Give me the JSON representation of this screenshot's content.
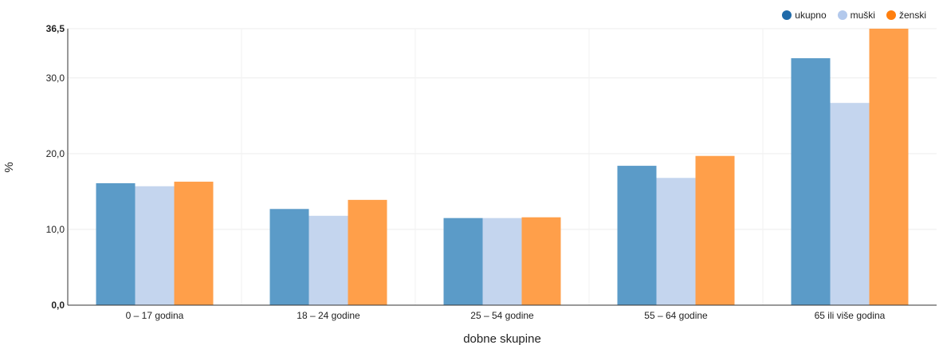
{
  "chart_data": {
    "type": "bar",
    "categories": [
      "0 – 17 godina",
      "18 – 24 godine",
      "25 – 54 godine",
      "55 – 64 godine",
      "65 ili više godina"
    ],
    "series": [
      {
        "name": "ukupno",
        "color": "#5b9bc8",
        "values": [
          16.1,
          12.7,
          11.5,
          18.4,
          32.6
        ]
      },
      {
        "name": "muški",
        "color": "#c4d5ee",
        "values": [
          15.7,
          11.8,
          11.5,
          16.8,
          26.7
        ]
      },
      {
        "name": "ženski",
        "color": "#ff9f4a",
        "values": [
          16.3,
          13.9,
          11.6,
          19.7,
          36.5
        ]
      }
    ],
    "legend_colors": [
      "#1f6aa9",
      "#b3c9ec",
      "#ff7f0e"
    ],
    "xlabel": "dobne skupine",
    "ylabel": "%",
    "ylim": [
      0,
      36.5
    ],
    "yticks": [
      {
        "value": 0,
        "label": "0,0",
        "bold": true
      },
      {
        "value": 10,
        "label": "10,0",
        "bold": false
      },
      {
        "value": 20,
        "label": "20,0",
        "bold": false
      },
      {
        "value": 30,
        "label": "30,0",
        "bold": false
      },
      {
        "value": 36.5,
        "label": "36,5",
        "bold": true
      }
    ],
    "grid": true,
    "legend_position": "top-right"
  }
}
